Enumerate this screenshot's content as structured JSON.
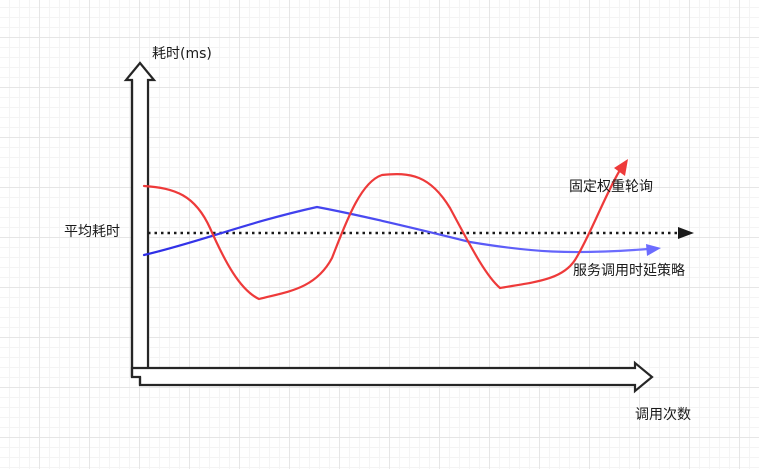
{
  "diagram": {
    "y_axis_label": "耗时(ms)",
    "x_axis_label": "调用次数",
    "avg_line_label": "平均耗时",
    "series": [
      {
        "name": "固定权重轮询",
        "color": "#ee3a3a"
      },
      {
        "name": "服务调用时延策略",
        "color": "#3b3bea"
      }
    ]
  },
  "colors": {
    "axis": "#262626",
    "avg_line": "#1a1a1a"
  }
}
